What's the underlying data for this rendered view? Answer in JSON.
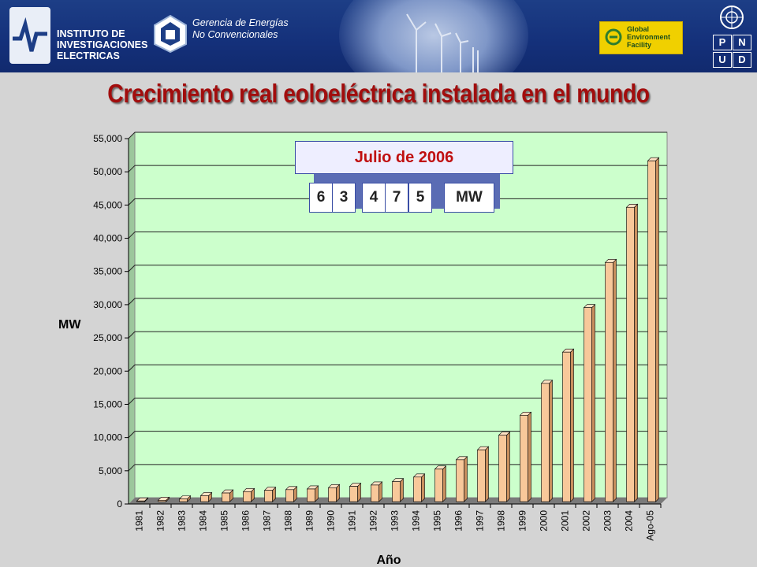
{
  "header": {
    "iie_lines": [
      "INSTITUTO DE",
      "INVESTIGACIONES",
      "ELECTRICAS"
    ],
    "gnc_lines": [
      "Gerencia de Energías",
      "No Convencionales"
    ],
    "gef_lines": [
      "Global",
      "Environment",
      "Facility"
    ],
    "undp_letters": [
      "P",
      "N",
      "U",
      "D"
    ]
  },
  "title": "Crecimiento real eoloeléctrica instalada en el mundo",
  "counter": {
    "label": "Julio de 2006",
    "digits": [
      "6",
      "3",
      "4",
      "7",
      "5"
    ],
    "unit": "MW"
  },
  "colors": {
    "title": "#a20d0d",
    "bar_front": "#f8c89a",
    "bar_side": "#c98f5e",
    "plot_bg": "#ccffcc"
  },
  "chart_data": {
    "type": "bar",
    "xlabel": "Año",
    "ylabel": "MW",
    "ylim": [
      0,
      55000
    ],
    "y_ticks": [
      "0",
      "5,000",
      "10,000",
      "15,000",
      "20,000",
      "25,000",
      "30,000",
      "35,000",
      "40,000",
      "45,000",
      "50,000",
      "55,000"
    ],
    "grid": true,
    "categories": [
      "1981",
      "1982",
      "1983",
      "1984",
      "1985",
      "1986",
      "1987",
      "1988",
      "1989",
      "1990",
      "1991",
      "1992",
      "1993",
      "1994",
      "1995",
      "1996",
      "1997",
      "1998",
      "1999",
      "2000",
      "2001",
      "2002",
      "2003",
      "2004",
      "Ago-05"
    ],
    "values": [
      100,
      200,
      400,
      900,
      1300,
      1500,
      1700,
      1800,
      1900,
      2100,
      2300,
      2500,
      3000,
      3700,
      4900,
      6300,
      7800,
      10000,
      13000,
      17800,
      22500,
      29200,
      36000,
      44300,
      51300
    ]
  }
}
